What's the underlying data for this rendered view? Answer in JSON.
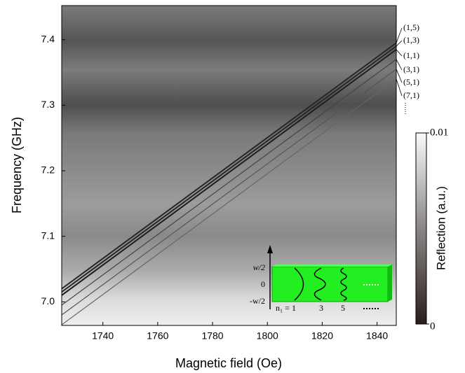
{
  "chart_data": {
    "type": "line",
    "x_label": "Magnetic field (Oe)",
    "y_label": "Frequency (GHz)",
    "x": [
      1725,
      1847
    ],
    "series": [
      {
        "name": "(1,5)",
        "color": "#262626",
        "values": [
          7.02,
          7.395
        ]
      },
      {
        "name": "(1,3)",
        "color": "#262626",
        "values": [
          7.015,
          7.39
        ]
      },
      {
        "name": "(1,1)",
        "color": "#1e1e1e",
        "values": [
          7.01,
          7.385
        ]
      },
      {
        "name": "(3,1)",
        "color": "#444444",
        "values": [
          6.995,
          7.37
        ]
      },
      {
        "name": "(5,1)",
        "color": "#555555",
        "values": [
          6.98,
          7.355
        ]
      },
      {
        "name": "(7,1)",
        "color": "#666666",
        "values": [
          6.965,
          7.34
        ]
      }
    ],
    "xlim": [
      1725,
      1847
    ],
    "xticks": [
      1740,
      1760,
      1780,
      1800,
      1820,
      1840
    ],
    "ylim": [
      6.964,
      7.452
    ],
    "yticks": [
      {
        "value": 7.0,
        "label": "7.0"
      },
      7.1,
      7.2,
      7.3,
      7.4
    ],
    "colorbar": {
      "label": "Reflection (a.u.)",
      "lim": [
        0,
        0.01
      ],
      "ticks": [
        0,
        0.01
      ]
    },
    "inset": {
      "y_labels": [
        "w/2",
        "0",
        "-w/2"
      ],
      "mode_labels": [
        "n₁ = 1",
        "3",
        "5"
      ]
    }
  }
}
